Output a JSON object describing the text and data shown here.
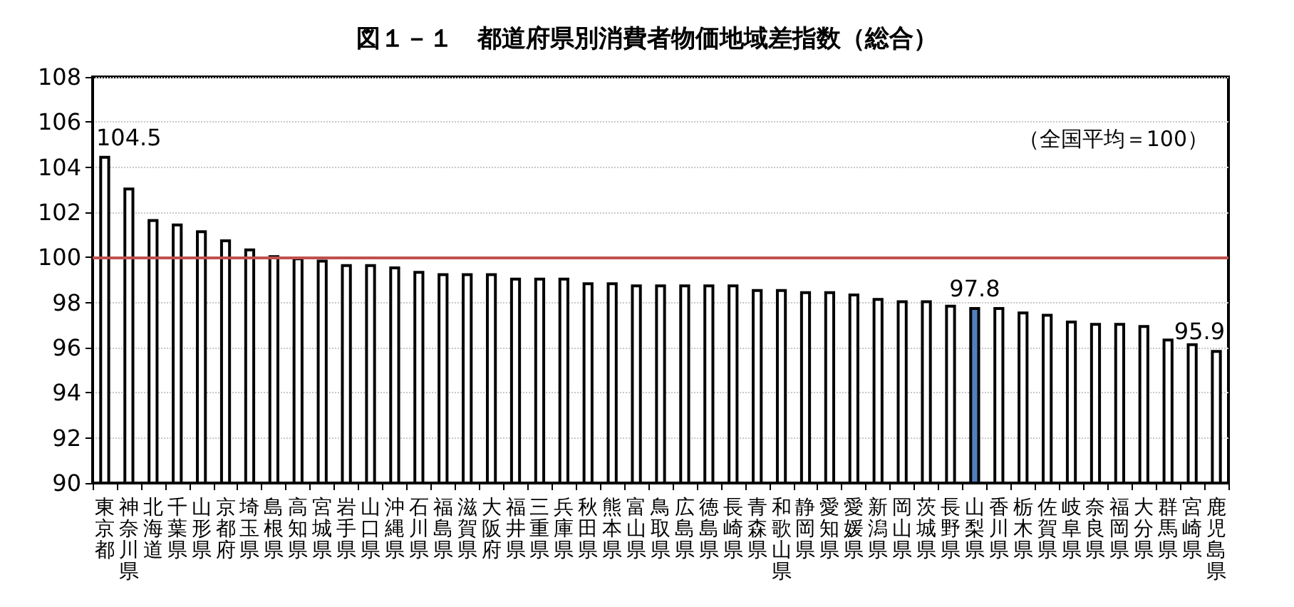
{
  "chart_data": {
    "type": "bar",
    "title": "図１－１　都道府県別消費者物価地域差指数（総合）",
    "annotations": [
      "（全国平均＝100）"
    ],
    "categories": [
      "東京都",
      "神奈川県",
      "北海道",
      "千葉県",
      "山形県",
      "京都府",
      "埼玉県",
      "島根県",
      "高知県",
      "宮城県",
      "岩手県",
      "山口県",
      "沖縄県",
      "石川県",
      "福島県",
      "滋賀県",
      "大阪府",
      "福井県",
      "三重県",
      "兵庫県",
      "秋田県",
      "熊本県",
      "富山県",
      "鳥取県",
      "広島県",
      "徳島県",
      "長崎県",
      "青森県",
      "和歌山県",
      "静岡県",
      "愛知県",
      "愛媛県",
      "新潟県",
      "岡山県",
      "茨城県",
      "長野県",
      "山梨県",
      "香川県",
      "栃木県",
      "佐賀県",
      "岐阜県",
      "奈良県",
      "福岡県",
      "大分県",
      "群馬県",
      "宮崎県",
      "鹿児島県"
    ],
    "values": [
      104.5,
      103.1,
      101.7,
      101.5,
      101.2,
      100.8,
      100.4,
      100.1,
      100.0,
      99.9,
      99.7,
      99.7,
      99.6,
      99.4,
      99.3,
      99.3,
      99.3,
      99.1,
      99.1,
      99.1,
      98.9,
      98.9,
      98.8,
      98.8,
      98.8,
      98.8,
      98.8,
      98.6,
      98.6,
      98.5,
      98.5,
      98.4,
      98.2,
      98.1,
      98.1,
      97.9,
      97.8,
      97.8,
      97.6,
      97.5,
      97.2,
      97.1,
      97.1,
      97.0,
      96.4,
      96.2,
      95.9
    ],
    "colors": [
      "#ffffff",
      "#ffffff",
      "#ffffff",
      "#ffffff",
      "#ffffff",
      "#ffffff",
      "#ffffff",
      "#ffffff",
      "#ffffff",
      "#ffffff",
      "#ffffff",
      "#ffffff",
      "#ffffff",
      "#ffffff",
      "#ffffff",
      "#ffffff",
      "#ffffff",
      "#ffffff",
      "#ffffff",
      "#ffffff",
      "#ffffff",
      "#ffffff",
      "#ffffff",
      "#ffffff",
      "#ffffff",
      "#ffffff",
      "#ffffff",
      "#ffffff",
      "#ffffff",
      "#ffffff",
      "#ffffff",
      "#ffffff",
      "#ffffff",
      "#ffffff",
      "#ffffff",
      "#ffffff",
      "#4f81bd",
      "#ffffff",
      "#ffffff",
      "#ffffff",
      "#ffffff",
      "#ffffff",
      "#ffffff",
      "#ffffff",
      "#ffffff",
      "#ffffff",
      "#ffffff"
    ],
    "value_labels": [
      "104.5",
      null,
      null,
      null,
      null,
      null,
      null,
      null,
      null,
      null,
      null,
      null,
      null,
      null,
      null,
      null,
      null,
      null,
      null,
      null,
      null,
      null,
      null,
      null,
      null,
      null,
      null,
      null,
      null,
      null,
      null,
      null,
      null,
      null,
      null,
      null,
      "97.8",
      null,
      null,
      null,
      null,
      null,
      null,
      null,
      null,
      null,
      "95.9"
    ],
    "ylim": [
      90,
      108
    ],
    "yticks": [
      90,
      92,
      94,
      96,
      98,
      100,
      102,
      104,
      106,
      108
    ],
    "ref_lines": [
      {
        "axis": "y",
        "value": 100,
        "color": "#c0504d"
      }
    ],
    "grid": "y"
  }
}
